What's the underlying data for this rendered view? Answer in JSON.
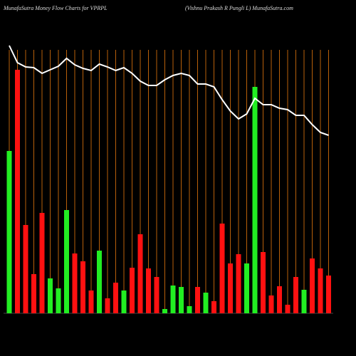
{
  "chart_data": {
    "type": "bar",
    "title": "MunafaSutra  Money Flow  Charts for VPRPL",
    "subtitle": "(Vishnu   Prakash  R Pungli   L) MunafaSutra.com",
    "categories": [
      null,
      null,
      null,
      null,
      null,
      null,
      null,
      null,
      null,
      null,
      null,
      null,
      null,
      null,
      null,
      null,
      null,
      null,
      null,
      null,
      null,
      null,
      null,
      null,
      null,
      null,
      null,
      null,
      null,
      null,
      null,
      null,
      null,
      null,
      null,
      null,
      null,
      null,
      null,
      null
    ],
    "series": [
      {
        "type": "bar",
        "values": [
          228,
          342,
          124,
          55,
          141,
          49,
          35,
          145,
          84,
          73,
          32,
          88,
          21,
          43,
          32,
          64,
          111,
          63,
          51,
          6,
          39,
          37,
          10,
          37,
          29,
          17,
          126,
          70,
          83,
          70,
          318,
          86,
          25,
          38,
          12,
          51,
          33,
          77,
          63,
          53
        ],
        "colors": [
          "#22ee22",
          "#ff1111",
          "#ff1111",
          "#ff1111",
          "#ff1111",
          "#22ee22",
          "#22ee22",
          "#22ee22",
          "#ff1111",
          "#ff1111",
          "#ff1111",
          "#22ee22",
          "#ff1111",
          "#ff1111",
          "#22ee22",
          "#ff1111",
          "#ff1111",
          "#ff1111",
          "#ff1111",
          "#22ee22",
          "#22ee22",
          "#22ee22",
          "#22ee22",
          "#ff1111",
          "#22ee22",
          "#ff1111",
          "#ff1111",
          "#ff1111",
          "#ff1111",
          "#22ee22",
          "#22ee22",
          "#ff1111",
          "#ff1111",
          "#ff1111",
          "#ff1111",
          "#ff1111",
          "#22ee22",
          "#ff1111",
          "#ff1111",
          "#ff1111"
        ]
      },
      {
        "type": "line",
        "color": "#ffffff",
        "values": [
          376,
          352,
          346,
          345,
          337,
          342,
          347,
          358,
          349,
          344,
          341,
          350,
          346,
          341,
          345,
          337,
          326,
          320,
          320,
          328,
          334,
          337,
          334,
          322,
          322,
          318,
          300,
          284,
          273,
          280,
          302,
          293,
          293,
          288,
          286,
          278,
          278,
          265,
          254,
          250
        ]
      }
    ],
    "ylim": [
      0,
      380
    ],
    "grid_color": "#b8600a"
  }
}
